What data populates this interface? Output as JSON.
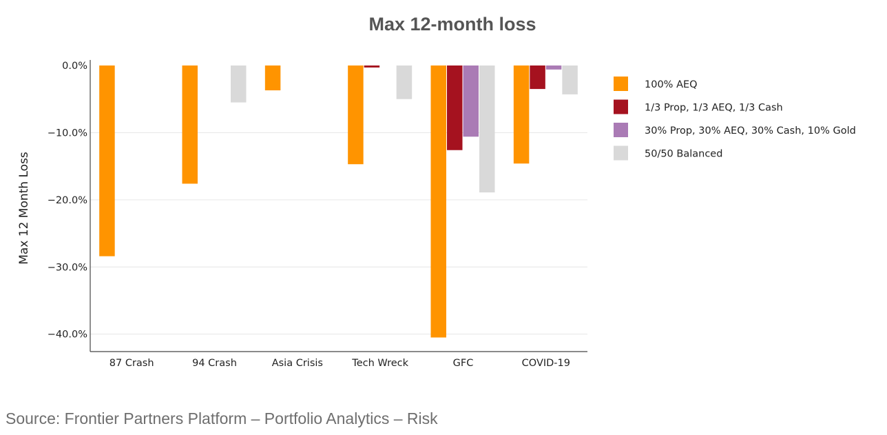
{
  "chart_data": {
    "type": "bar",
    "title": "Max 12-month loss",
    "xlabel": "",
    "ylabel": "Max 12 Month Loss",
    "categories": [
      "87 Crash",
      "94 Crash",
      "Asia Crisis",
      "Tech Wreck",
      "GFC",
      "COVID-19"
    ],
    "series": [
      {
        "name": "100% AEQ",
        "color": "#ff9400",
        "values": [
          -28.4,
          -17.6,
          -3.7,
          -14.7,
          -40.5,
          -14.6
        ]
      },
      {
        "name": "1/3 Prop, 1/3 AEQ, 1/3 Cash",
        "color": "#a5121f",
        "values": [
          0,
          0,
          0,
          -0.3,
          -12.6,
          -3.5
        ]
      },
      {
        "name": "30% Prop, 30% AEQ, 30% Cash, 10% Gold",
        "color": "#aa7bb5",
        "values": [
          0,
          0,
          0,
          0,
          -10.6,
          -0.6
        ]
      },
      {
        "name": "50/50 Balanced",
        "color": "#d9d9d9",
        "values": [
          0,
          -5.5,
          0,
          -5.0,
          -18.9,
          -4.3
        ]
      }
    ],
    "yticks": [
      0,
      -10,
      -20,
      -30,
      -40
    ],
    "ytick_labels": [
      "0.0%",
      "−10.0%",
      "−20.0%",
      "−30.0%",
      "−40.0%"
    ],
    "ylim": [
      -42.6,
      0
    ],
    "grid": true,
    "legend_position": "right"
  },
  "footer": {
    "source": "Source: Frontier Partners Platform – Portfolio Analytics – Risk"
  }
}
